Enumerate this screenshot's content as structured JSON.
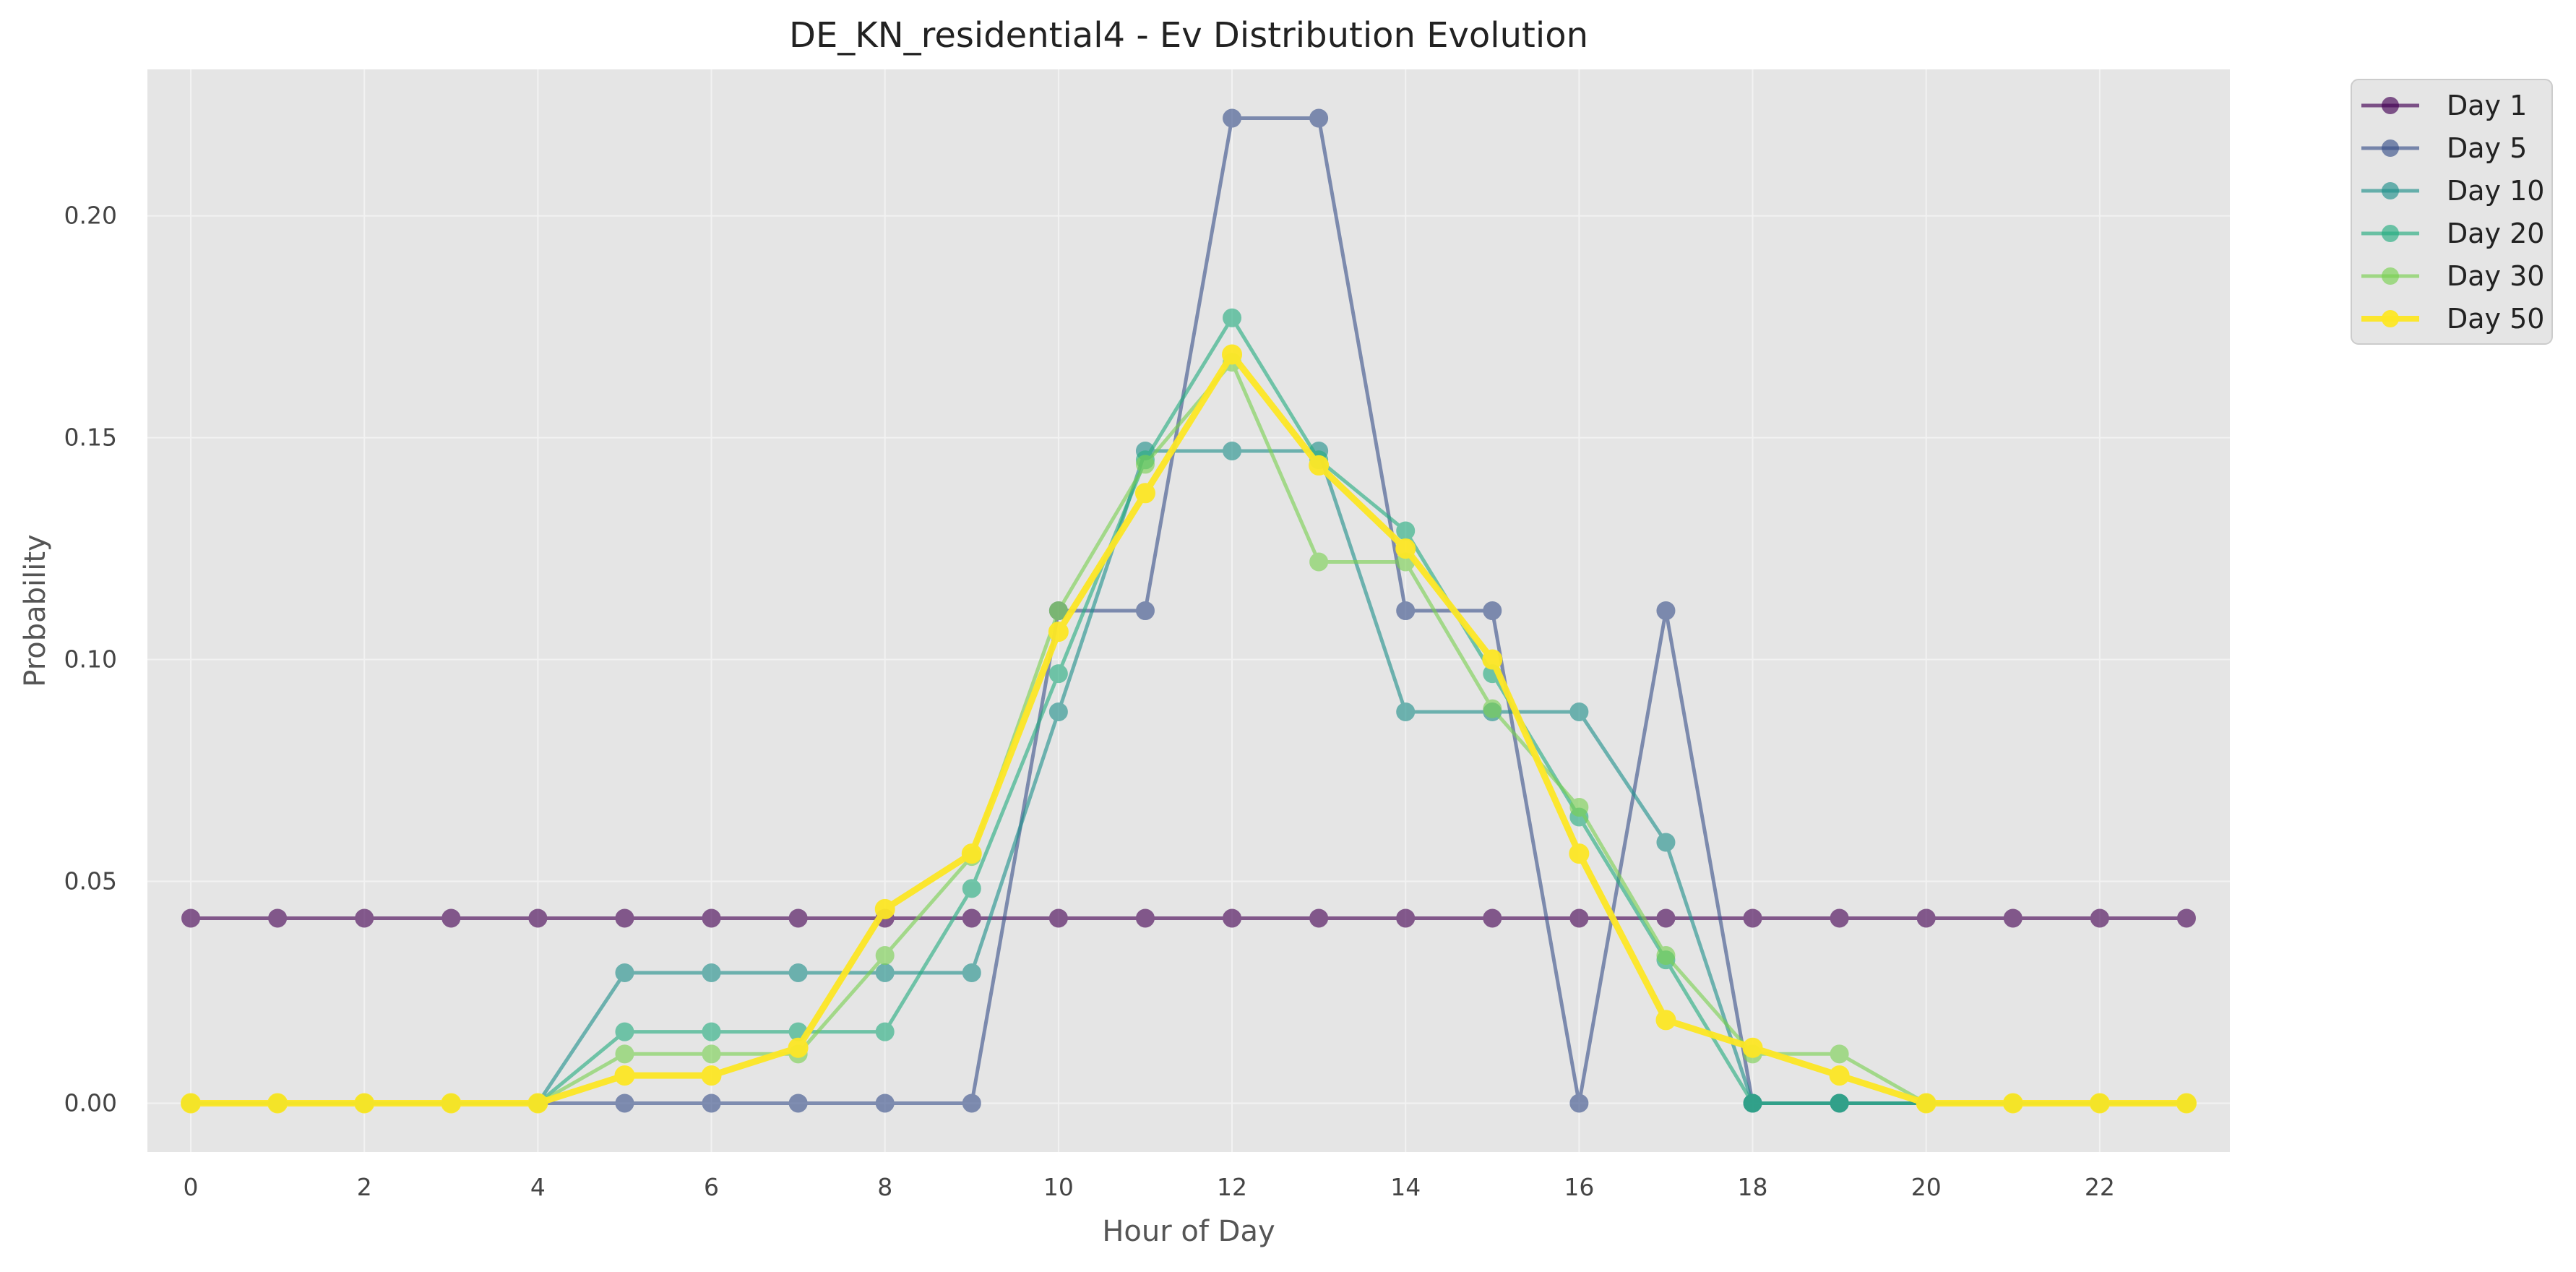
{
  "chart_data": {
    "type": "line",
    "title": "DE_KN_residential4 - Ev Distribution Evolution",
    "xlabel": "Hour of Day",
    "ylabel": "Probability",
    "xlim": [
      -0.5,
      23.5
    ],
    "ylim": [
      -0.011,
      0.233
    ],
    "x_ticks": [
      0,
      2,
      4,
      6,
      8,
      10,
      12,
      14,
      16,
      18,
      20,
      22
    ],
    "y_ticks": [
      0.0,
      0.05,
      0.1,
      0.15,
      0.2
    ],
    "y_tick_labels": [
      "0.00",
      "0.05",
      "0.10",
      "0.15",
      "0.20"
    ],
    "grid": true,
    "legend_position": "outside-top-right",
    "x": [
      0,
      1,
      2,
      3,
      4,
      5,
      6,
      7,
      8,
      9,
      10,
      11,
      12,
      13,
      14,
      15,
      16,
      17,
      18,
      19,
      20,
      21,
      22,
      23
    ],
    "series": [
      {
        "name": "Day 1",
        "color": "#440154",
        "values": [
          0.0417,
          0.0417,
          0.0417,
          0.0417,
          0.0417,
          0.0417,
          0.0417,
          0.0417,
          0.0417,
          0.0417,
          0.0417,
          0.0417,
          0.0417,
          0.0417,
          0.0417,
          0.0417,
          0.0417,
          0.0417,
          0.0417,
          0.0417,
          0.0417,
          0.0417,
          0.0417,
          0.0417
        ]
      },
      {
        "name": "Day 5",
        "color": "#3b528b",
        "values": [
          0,
          0,
          0,
          0,
          0,
          0,
          0,
          0,
          0,
          0,
          0.111,
          0.111,
          0.222,
          0.222,
          0.111,
          0.111,
          0,
          0.111,
          0,
          0,
          0,
          0,
          0,
          0
        ]
      },
      {
        "name": "Day 10",
        "color": "#21918c",
        "values": [
          0,
          0,
          0,
          0,
          0,
          0.0294,
          0.0294,
          0.0294,
          0.0294,
          0.0294,
          0.0882,
          0.147,
          0.147,
          0.147,
          0.0882,
          0.0882,
          0.0882,
          0.0588,
          0,
          0,
          0,
          0,
          0,
          0
        ]
      },
      {
        "name": "Day 20",
        "color": "#27ad81",
        "values": [
          0,
          0,
          0,
          0,
          0,
          0.0161,
          0.0161,
          0.0161,
          0.0161,
          0.0484,
          0.0968,
          0.145,
          0.177,
          0.145,
          0.129,
          0.0968,
          0.0645,
          0.0323,
          0,
          0,
          0,
          0,
          0,
          0
        ]
      },
      {
        "name": "Day 30",
        "color": "#7ad151",
        "values": [
          0,
          0,
          0,
          0,
          0,
          0.0111,
          0.0111,
          0.0111,
          0.0333,
          0.0556,
          0.111,
          0.144,
          0.167,
          0.122,
          0.122,
          0.0889,
          0.0667,
          0.0333,
          0.0111,
          0.0111,
          0,
          0,
          0,
          0
        ]
      },
      {
        "name": "Day 50",
        "color": "#fde725",
        "values": [
          0,
          0,
          0,
          0,
          0,
          0.00625,
          0.00625,
          0.0125,
          0.04375,
          0.05625,
          0.10625,
          0.1375,
          0.16875,
          0.14375,
          0.125,
          0.1,
          0.05625,
          0.01875,
          0.0125,
          0.00625,
          0,
          0,
          0,
          0
        ]
      }
    ]
  }
}
